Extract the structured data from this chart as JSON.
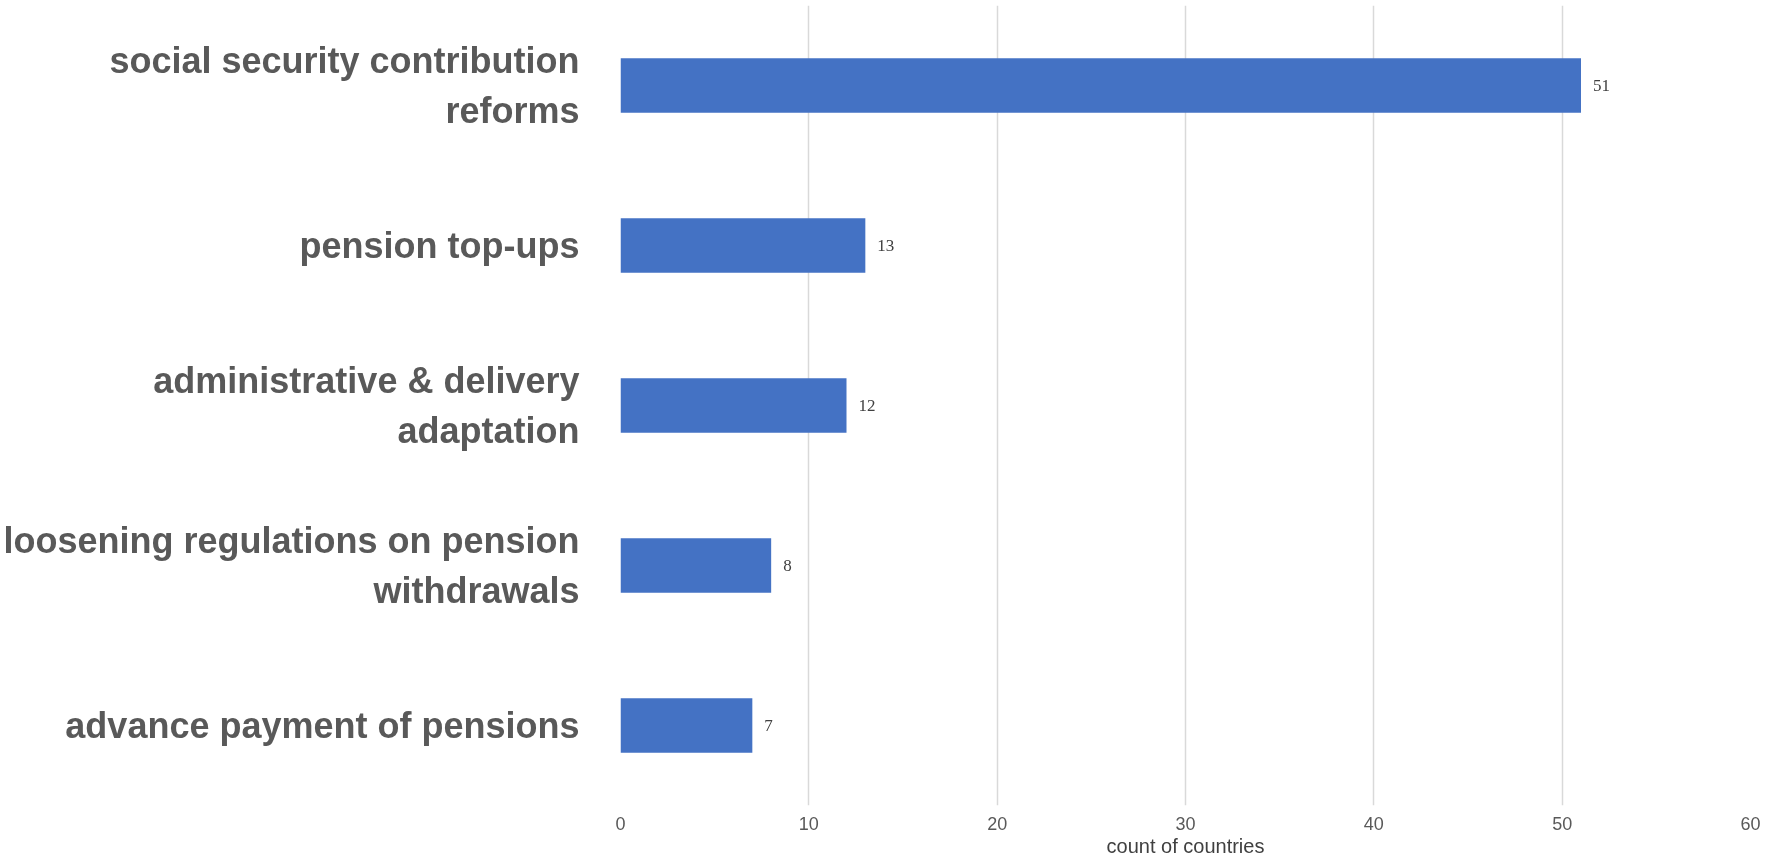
{
  "chart_data": {
    "type": "bar",
    "orientation": "horizontal",
    "xlabel": "count of countries",
    "categories": [
      "social security contribution reforms",
      "pension top-ups",
      "administrative & delivery adaptation",
      "loosening regulations on pension withdrawals",
      "advance payment of pensions"
    ],
    "values": [
      51,
      13,
      12,
      8,
      7
    ],
    "color": "#4472c4",
    "xlim": [
      0,
      60
    ],
    "xticks": [
      0,
      10,
      20,
      30,
      40,
      50,
      60
    ],
    "grid": "x",
    "data_labels": true
  }
}
